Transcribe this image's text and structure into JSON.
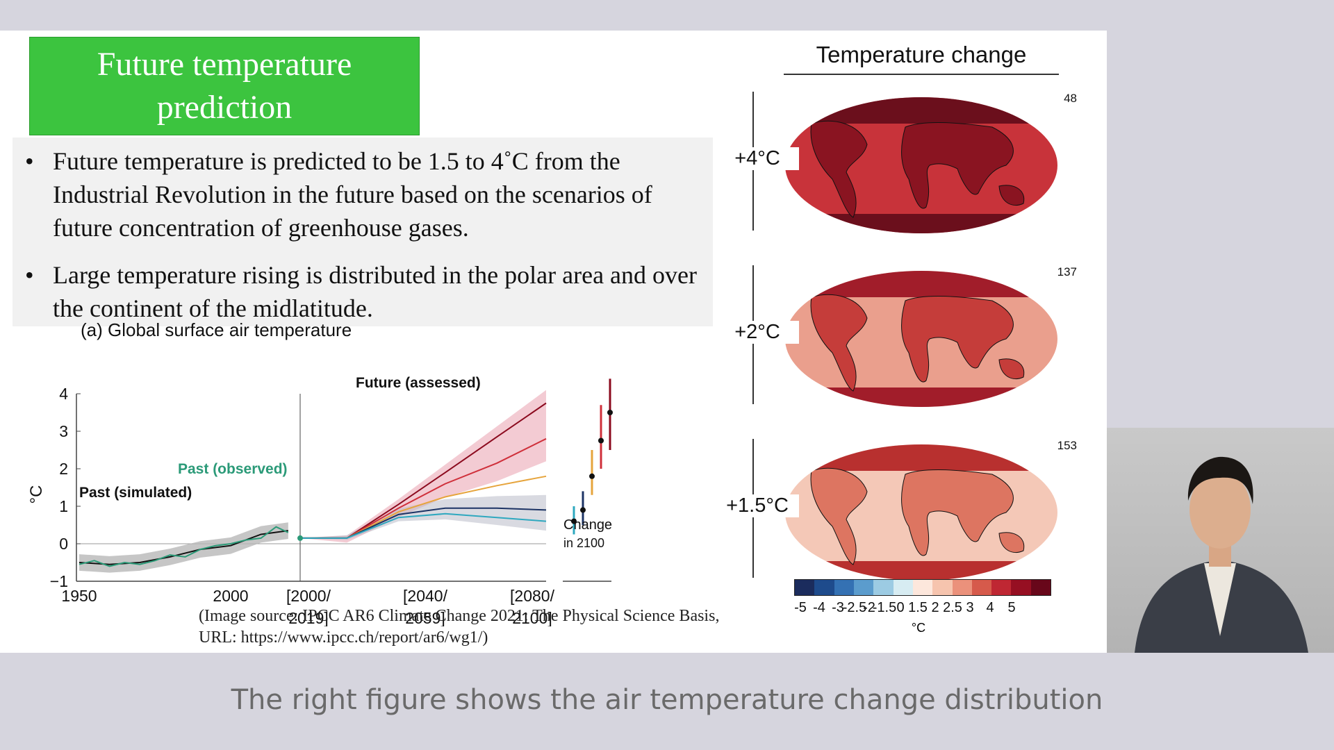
{
  "slide": {
    "title_line1": "Future temperature",
    "title_line2": "prediction",
    "bullets": [
      "Future temperature is predicted to be 1.5 to 4˚C from the Industrial Revolution in the future based on the scenarios of future concentration of greenhouse gases.",
      "Large temperature rising is distributed in the polar area and over the continent of the midlatitude."
    ],
    "bullet_symbol": "•",
    "source_line1": "(Image source: IPCC AR6 Climate Change 2021: The Physical Science Basis,",
    "source_line2": "URL: https://www.ipcc.ch/report/ar6/wg1/)"
  },
  "chart_data": {
    "type": "line",
    "title": "(a) Global surface air temperature",
    "ylabel": "°C",
    "ylim": [
      -1,
      4
    ],
    "yticks": [
      "−1",
      "0",
      "1",
      "2",
      "3",
      "4"
    ],
    "xticks_past": [
      "1950",
      "2000"
    ],
    "xticks_future": [
      "[2000/\n2019]",
      "[2040/\n2059]",
      "[2080/\n2100]"
    ],
    "change_label_line1": "Change",
    "change_label_line2": "in 2100",
    "annotations": {
      "future": "Future (assessed)",
      "observed": "Past (observed)",
      "simulated": "Past (simulated)"
    },
    "future_x": [
      2000,
      2019,
      2040,
      2059,
      2080,
      2100
    ],
    "series": [
      {
        "values": [
          0.15,
          0.15,
          1.05,
          1.9,
          2.85,
          3.75
        ],
        "color": "#8b0a1e"
      },
      {
        "values": [
          0.15,
          0.15,
          0.95,
          1.6,
          2.15,
          2.8
        ],
        "color": "#cf2f3a"
      },
      {
        "values": [
          0.15,
          0.15,
          0.85,
          1.25,
          1.55,
          1.8
        ],
        "color": "#e6a43c"
      },
      {
        "values": [
          0.15,
          0.15,
          0.78,
          0.95,
          0.95,
          0.9
        ],
        "color": "#1c3364"
      },
      {
        "values": [
          0.15,
          0.15,
          0.7,
          0.8,
          0.7,
          0.6
        ],
        "color": "#2ea8bf"
      }
    ],
    "change_2100": [
      {
        "mid": 0.6,
        "low": 0.25,
        "high": 1.0,
        "color": "#2ea8bf"
      },
      {
        "mid": 0.9,
        "low": 0.5,
        "high": 1.4,
        "color": "#1c3364"
      },
      {
        "mid": 1.8,
        "low": 1.3,
        "high": 2.5,
        "color": "#e6a43c"
      },
      {
        "mid": 2.75,
        "low": 2.0,
        "high": 3.7,
        "color": "#cf2f3a"
      },
      {
        "mid": 3.5,
        "low": 2.5,
        "high": 4.4,
        "color": "#8b0a1e"
      }
    ],
    "past_simulated": {
      "x": [
        1950,
        1960,
        1970,
        1980,
        1990,
        2000,
        2010,
        2019
      ],
      "y": [
        -0.5,
        -0.55,
        -0.5,
        -0.35,
        -0.15,
        -0.05,
        0.25,
        0.35
      ]
    },
    "past_observed": {
      "x": [
        1950,
        1955,
        1960,
        1965,
        1970,
        1975,
        1980,
        1985,
        1990,
        1995,
        2000,
        2005,
        2010,
        2015,
        2019
      ],
      "y": [
        -0.55,
        -0.45,
        -0.6,
        -0.5,
        -0.55,
        -0.45,
        -0.3,
        -0.35,
        -0.15,
        -0.05,
        0.0,
        0.1,
        0.15,
        0.45,
        0.3
      ]
    }
  },
  "maps": {
    "title": "Temperature change",
    "rows": [
      {
        "label": "+4°C",
        "count": "48",
        "base": "#c8333a",
        "land": "#8a1421",
        "pole": "#6b0f1c"
      },
      {
        "label": "+2°C",
        "count": "137",
        "base": "#ea9f8d",
        "land": "#c53d3a",
        "pole": "#a11d2a"
      },
      {
        "label": "+1.5°C",
        "count": "153",
        "base": "#f4c8b7",
        "land": "#dd7561",
        "pole": "#b8302f"
      }
    ],
    "colorbar": {
      "colors": [
        "#1b2c5d",
        "#1e4b8c",
        "#3471b3",
        "#5b9ccd",
        "#9ccbe3",
        "#d7ecf2",
        "#fde7dc",
        "#f6c4ae",
        "#eb917b",
        "#d65a4b",
        "#bf2733",
        "#960f22",
        "#68071a"
      ],
      "labels": [
        "-5",
        "-4",
        "-3",
        "-2.5",
        "-2",
        "-1.5",
        "0",
        "1.5",
        "2",
        "2.5",
        "3",
        "4",
        "5"
      ],
      "unit": "°C"
    }
  },
  "caption": "The right figure shows the air temperature change distribution"
}
